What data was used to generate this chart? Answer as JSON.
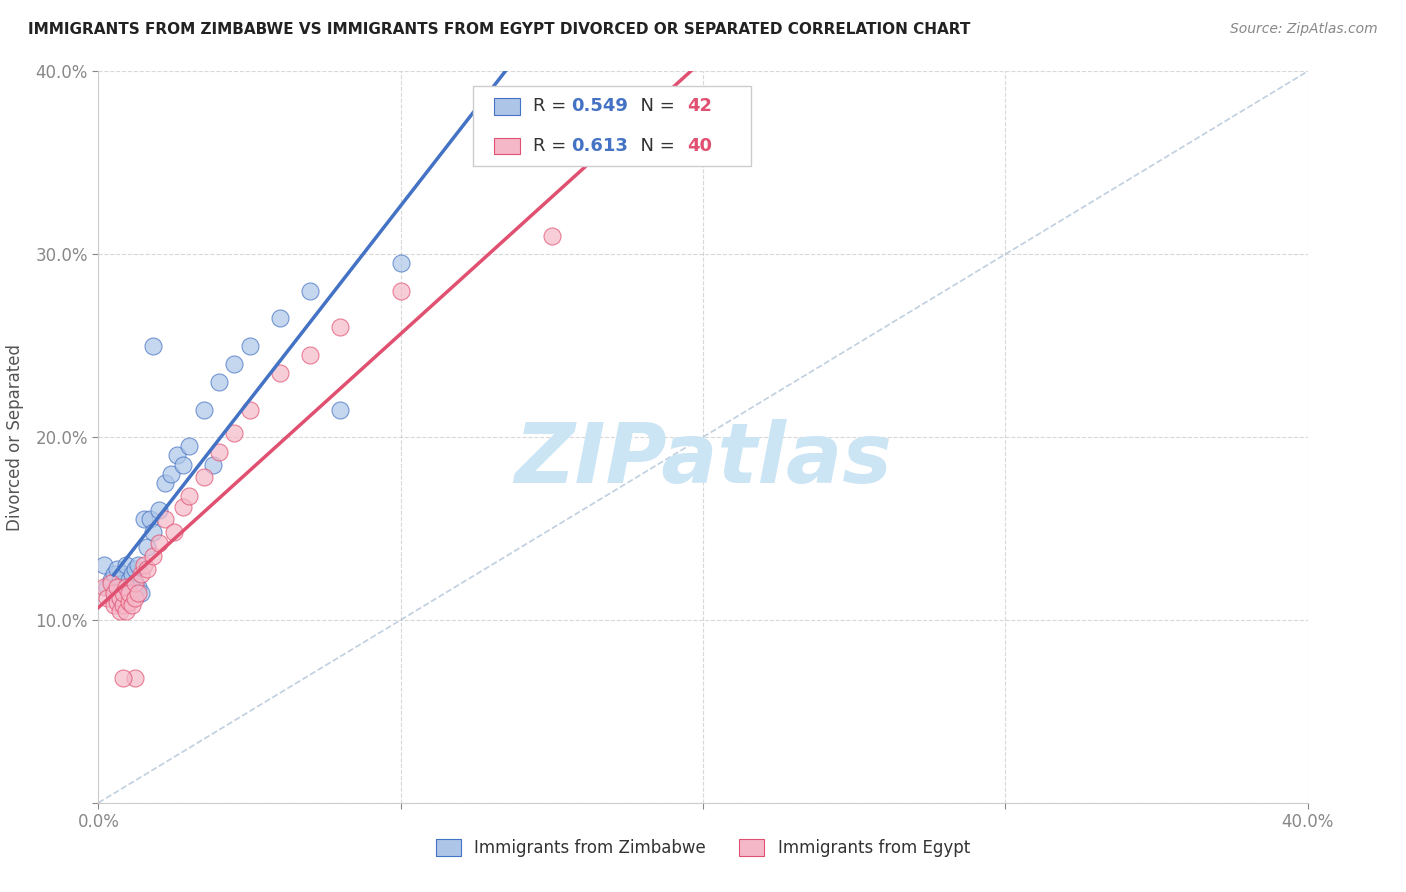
{
  "title": "IMMIGRANTS FROM ZIMBABWE VS IMMIGRANTS FROM EGYPT DIVORCED OR SEPARATED CORRELATION CHART",
  "source": "Source: ZipAtlas.com",
  "ylabel": "Divorced or Separated",
  "r_zimbabwe": 0.549,
  "n_zimbabwe": 42,
  "r_egypt": 0.613,
  "n_egypt": 40,
  "color_zimbabwe": "#adc6e8",
  "color_egypt": "#f5b8c8",
  "line_color_zimbabwe": "#4472c4",
  "line_color_egypt": "#e05070",
  "diagonal_color": "#b0c4d8",
  "background_color": "#ffffff",
  "grid_color": "#c8c8c8",
  "title_color": "#222222",
  "source_color": "#888888",
  "legend_color": "#4472c4",
  "xlim": [
    0.0,
    0.4
  ],
  "ylim": [
    0.0,
    0.4
  ],
  "x_ticks": [
    0.0,
    0.1,
    0.2,
    0.3,
    0.4
  ],
  "y_ticks": [
    0.0,
    0.1,
    0.2,
    0.3,
    0.4
  ],
  "watermark_text": "ZIPatlas",
  "watermark_color": "#cce5f5",
  "watermark_fontsize": 60,
  "zimbabwe_x": [
    0.002,
    0.003,
    0.004,
    0.005,
    0.005,
    0.006,
    0.006,
    0.007,
    0.007,
    0.008,
    0.008,
    0.009,
    0.009,
    0.01,
    0.01,
    0.011,
    0.011,
    0.012,
    0.012,
    0.013,
    0.013,
    0.014,
    0.015,
    0.016,
    0.017,
    0.018,
    0.02,
    0.022,
    0.024,
    0.026,
    0.028,
    0.03,
    0.035,
    0.04,
    0.045,
    0.05,
    0.06,
    0.07,
    0.08,
    0.1,
    0.038,
    0.018
  ],
  "zimbabwe_y": [
    0.13,
    0.118,
    0.122,
    0.115,
    0.125,
    0.118,
    0.128,
    0.115,
    0.122,
    0.12,
    0.125,
    0.112,
    0.13,
    0.118,
    0.122,
    0.125,
    0.115,
    0.128,
    0.12,
    0.118,
    0.13,
    0.115,
    0.155,
    0.14,
    0.155,
    0.148,
    0.16,
    0.175,
    0.18,
    0.19,
    0.185,
    0.195,
    0.215,
    0.23,
    0.24,
    0.25,
    0.265,
    0.28,
    0.215,
    0.295,
    0.185,
    0.25
  ],
  "egypt_x": [
    0.002,
    0.003,
    0.004,
    0.005,
    0.005,
    0.006,
    0.006,
    0.007,
    0.007,
    0.008,
    0.008,
    0.009,
    0.009,
    0.01,
    0.01,
    0.011,
    0.012,
    0.012,
    0.013,
    0.014,
    0.015,
    0.016,
    0.018,
    0.02,
    0.022,
    0.025,
    0.028,
    0.03,
    0.035,
    0.04,
    0.045,
    0.05,
    0.06,
    0.07,
    0.08,
    0.1,
    0.15,
    0.2,
    0.012,
    0.008
  ],
  "egypt_y": [
    0.118,
    0.112,
    0.12,
    0.108,
    0.115,
    0.11,
    0.118,
    0.105,
    0.112,
    0.108,
    0.115,
    0.105,
    0.118,
    0.11,
    0.115,
    0.108,
    0.112,
    0.12,
    0.115,
    0.125,
    0.13,
    0.128,
    0.135,
    0.142,
    0.155,
    0.148,
    0.162,
    0.168,
    0.178,
    0.192,
    0.202,
    0.215,
    0.235,
    0.245,
    0.26,
    0.28,
    0.31,
    0.355,
    0.068,
    0.068
  ]
}
